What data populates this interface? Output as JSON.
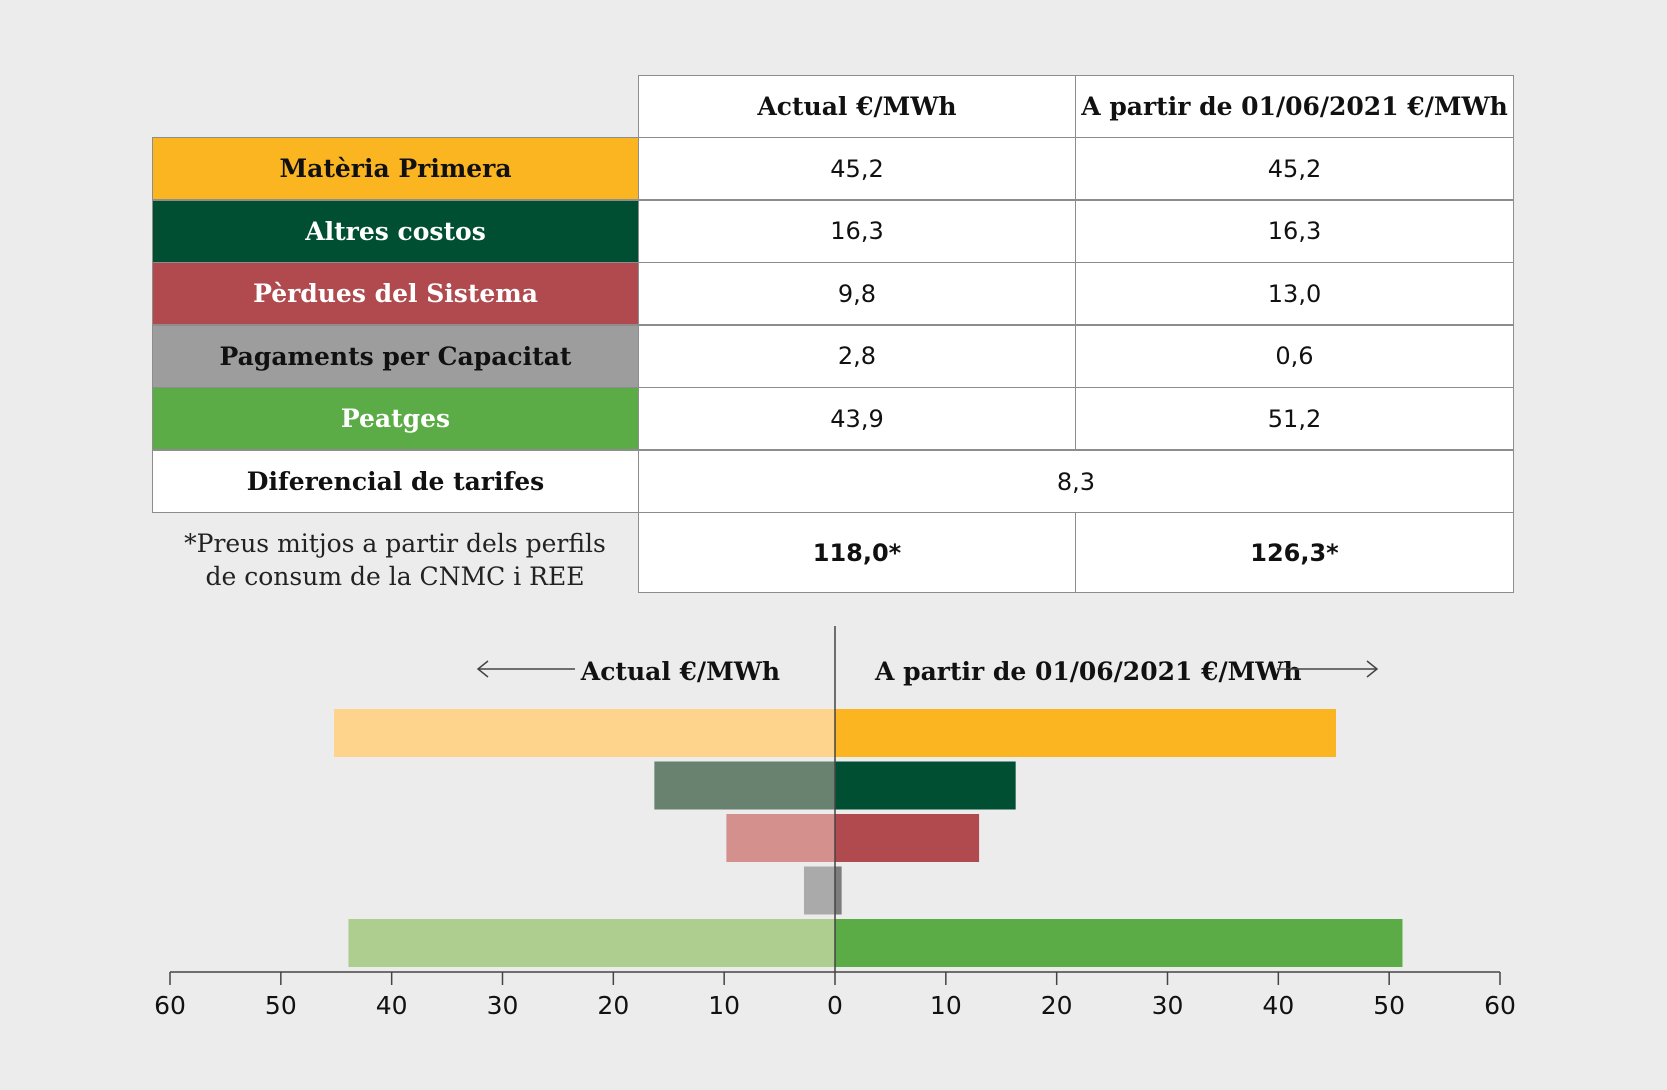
{
  "table": {
    "col_headers": [
      "Actual €/MWh",
      "A partir de 01/06/2021 €/MWh"
    ],
    "rows": [
      {
        "label": "Matèria Primera",
        "color": "#fbb521",
        "text_color": "#111111",
        "actual": "45,2",
        "new": "45,2"
      },
      {
        "label": "Altres costos",
        "color": "#004f33",
        "text_color": "#ffffff",
        "actual": "16,3",
        "new": "16,3"
      },
      {
        "label": "Pèrdues del Sistema",
        "color": "#b04a4f",
        "text_color": "#ffffff",
        "actual": "9,8",
        "new": "13,0"
      },
      {
        "label": "Pagaments per Capacitat",
        "color": "#9d9d9d",
        "text_color": "#111111",
        "actual": "2,8",
        "new": "0,6"
      },
      {
        "label": "Peatges",
        "color": "#5bac46",
        "text_color": "#ffffff",
        "actual": "43,9",
        "new": "51,2"
      }
    ],
    "diff_row": {
      "label": "Diferencial de tarifes",
      "value": "8,3"
    },
    "note_line1": "*Preus mitjos a partir dels perfils",
    "note_line2": "de consum de la CNMC i REE",
    "totals": {
      "actual": "118,0*",
      "new": "126,3*"
    }
  },
  "chart_data": {
    "type": "bar",
    "orientation": "horizontal-butterfly",
    "left_title": "Actual €/MWh",
    "right_title": "A partir de 01/06/2021 €/MWh",
    "categories": [
      "Matèria Primera",
      "Altres costos",
      "Pèrdues del Sistema",
      "Pagaments per Capacitat",
      "Peatges"
    ],
    "series": [
      {
        "name": "Actual €/MWh",
        "side": "left",
        "values": [
          45.2,
          16.3,
          9.8,
          2.8,
          43.9
        ],
        "colors": [
          "#fed48c",
          "#68826f",
          "#d3908d",
          "#aaaaaa",
          "#adce8f"
        ]
      },
      {
        "name": "A partir de 01/06/2021 €/MWh",
        "side": "right",
        "values": [
          45.2,
          16.3,
          13.0,
          0.6,
          51.2
        ],
        "colors": [
          "#fbb521",
          "#004f33",
          "#b04a4f",
          "#7d7d7d",
          "#5bac46"
        ]
      }
    ],
    "xlim": [
      0,
      60
    ],
    "tick_labels": [
      "60",
      "50",
      "40",
      "30",
      "20",
      "10",
      "0",
      "10",
      "20",
      "30",
      "40",
      "50",
      "60"
    ]
  }
}
